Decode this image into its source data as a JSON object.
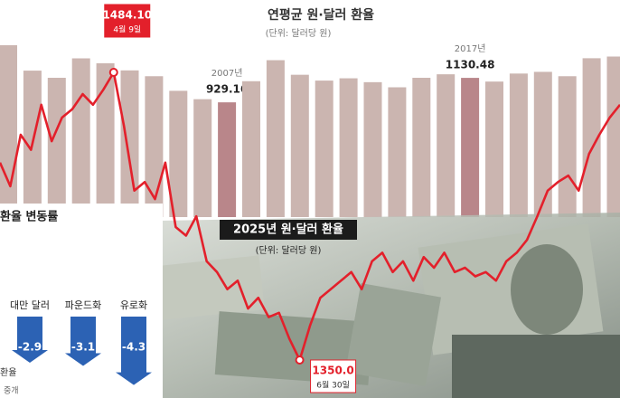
{
  "chart_data": [
    {
      "type": "bar",
      "title": "연평균 원·달러 환율",
      "subtitle": "(단위: 달러당 원)",
      "categories": [
        null,
        null,
        null,
        null,
        null,
        null,
        null,
        null,
        null,
        "2007년",
        null,
        null,
        null,
        null,
        null,
        null,
        null,
        null,
        null,
        "2017년",
        null,
        null,
        null,
        null,
        null,
        null
      ],
      "values": [
        1399,
        1190,
        1131,
        1291,
        1251,
        1192,
        1144,
        1024,
        955,
        929.16,
        1103,
        1276,
        1156,
        1108,
        1127,
        1095,
        1053,
        1131,
        1160,
        1130.48,
        1100,
        1166,
        1180,
        1144,
        1292,
        1306
      ],
      "color": "#cbb5b0",
      "highlight_color": "#b9868a"
    },
    {
      "type": "line",
      "title": "2025년 원·달러 환율",
      "subtitle": "(단위: 달러당 원)",
      "values": [
        1442,
        1431,
        1455,
        1448,
        1469,
        1452,
        1463,
        1467,
        1474,
        1469,
        1476,
        1484.1,
        1459,
        1429,
        1433,
        1425,
        1442,
        1412,
        1408,
        1417,
        1396,
        1391,
        1383,
        1387,
        1374,
        1379,
        1370,
        1372,
        1360,
        1350,
        1366,
        1379,
        1383,
        1387,
        1391,
        1383,
        1396,
        1400,
        1391,
        1396,
        1387,
        1398,
        1393,
        1400,
        1391,
        1393,
        1389,
        1391,
        1387,
        1396,
        1400,
        1406,
        1417,
        1429,
        1433,
        1436,
        1429,
        1446,
        1455,
        1463,
        1469
      ],
      "color": "#e3202b",
      "annotations": [
        {
          "value": 1484.1,
          "label": "1484.10",
          "date": "4월 9일"
        },
        {
          "value": 1350,
          "label": "1350.0",
          "date": "6월 30일"
        }
      ]
    },
    {
      "type": "arrow-bar",
      "title": "환율 변동률",
      "categories": [
        "대만 달러",
        "파운드화",
        "유로화"
      ],
      "values": [
        -2.9,
        -3.1,
        -4.3
      ],
      "color": "#2c62b4",
      "notes": [
        "환율",
        "중개"
      ]
    }
  ]
}
